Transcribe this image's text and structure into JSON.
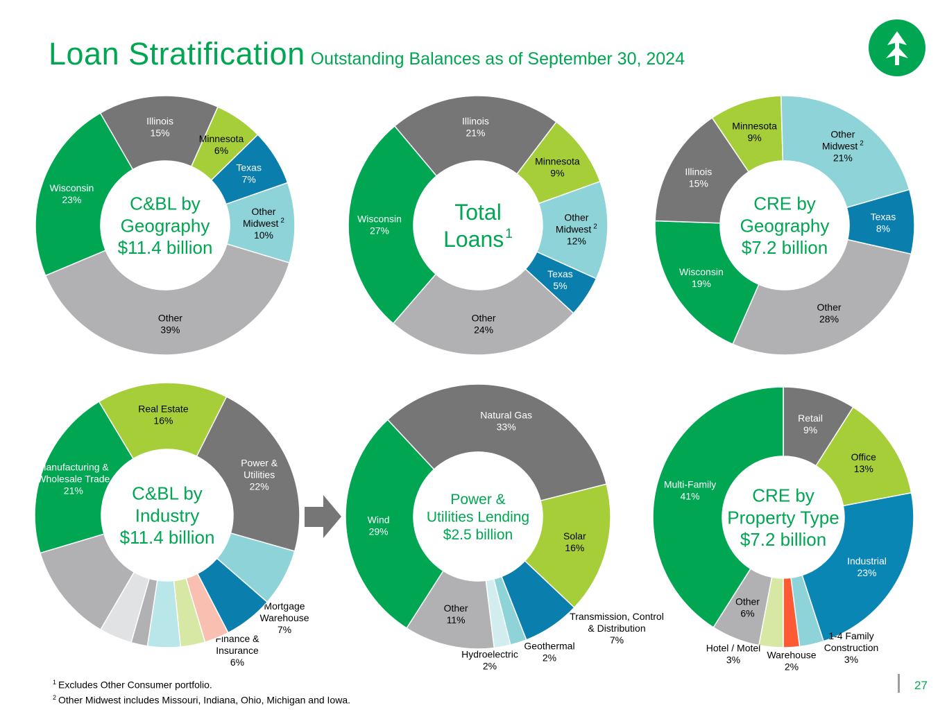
{
  "header": {
    "title": "Loan Stratification",
    "subtitle": "Outstanding Balances as of September 30, 2024"
  },
  "colors": {
    "green": "#00A651",
    "dark_gray": "#767676",
    "light_green": "#A6CE39",
    "blue": "#0A7FAE",
    "light_teal": "#8DD3D8",
    "light_gray": "#B1B1B3"
  },
  "logo": {
    "icon": "tree-logo-icon"
  },
  "chart_data": [
    {
      "type": "donut",
      "title": [
        "C&BL by",
        "Geography",
        "$11.4 billion"
      ],
      "slices": [
        {
          "label": [
            "Illinois"
          ],
          "value": 15,
          "color": "#767676",
          "text_color": "#ffffff"
        },
        {
          "label": [
            "Minnesota"
          ],
          "value": 6,
          "color": "#A6CE39",
          "text_color": "#000000"
        },
        {
          "label": [
            "Texas"
          ],
          "value": 7,
          "color": "#0A7FAE",
          "text_color": "#ffffff"
        },
        {
          "label": [
            "Other",
            "Midwest"
          ],
          "sup": "2",
          "value": 10,
          "color": "#8DD3D8",
          "text_color": "#000000"
        },
        {
          "label": [
            "Other"
          ],
          "value": 39,
          "color": "#B1B1B3",
          "text_color": "#000000"
        },
        {
          "label": [
            "Wisconsin"
          ],
          "value": 23,
          "color": "#00A651",
          "text_color": "#ffffff"
        }
      ]
    },
    {
      "type": "donut",
      "title": [
        "Total",
        "Loans"
      ],
      "title_sup": "1",
      "slices": [
        {
          "label": [
            "Illinois"
          ],
          "value": 21,
          "color": "#767676",
          "text_color": "#ffffff"
        },
        {
          "label": [
            "Minnesota"
          ],
          "value": 9,
          "color": "#A6CE39",
          "text_color": "#000000"
        },
        {
          "label": [
            "Other",
            "Midwest"
          ],
          "sup": "2",
          "value": 12,
          "color": "#8DD3D8",
          "text_color": "#000000"
        },
        {
          "label": [
            "Texas"
          ],
          "value": 5,
          "color": "#0A7FAE",
          "text_color": "#ffffff"
        },
        {
          "label": [
            "Other"
          ],
          "value": 24,
          "color": "#B1B1B3",
          "text_color": "#000000"
        },
        {
          "label": [
            "Wisconsin"
          ],
          "value": 27,
          "color": "#00A651",
          "text_color": "#ffffff"
        }
      ]
    },
    {
      "type": "donut",
      "title": [
        "CRE by",
        "Geography",
        "$7.2 billion"
      ],
      "slices": [
        {
          "label": [
            "Minnesota"
          ],
          "value": 9,
          "color": "#A6CE39",
          "text_color": "#000000"
        },
        {
          "label": [
            "Other",
            "Midwest"
          ],
          "sup": "2",
          "value": 21,
          "color": "#8DD3D8",
          "text_color": "#000000"
        },
        {
          "label": [
            "Texas"
          ],
          "value": 8,
          "color": "#0A7FAE",
          "text_color": "#ffffff"
        },
        {
          "label": [
            "Other"
          ],
          "value": 28,
          "color": "#B1B1B3",
          "text_color": "#000000"
        },
        {
          "label": [
            "Wisconsin"
          ],
          "value": 19,
          "color": "#00A651",
          "text_color": "#ffffff"
        },
        {
          "label": [
            "Illinois"
          ],
          "value": 15,
          "color": "#767676",
          "text_color": "#ffffff"
        }
      ]
    },
    {
      "type": "donut",
      "title": [
        "C&BL by",
        "Industry",
        "$11.4 billion"
      ],
      "slices": [
        {
          "label": [
            "Real Estate"
          ],
          "value": 16,
          "color": "#A6CE39",
          "text_color": "#000000"
        },
        {
          "label": [
            "Power &",
            "Utilities"
          ],
          "value": 22,
          "color": "#767676",
          "text_color": "#ffffff"
        },
        {
          "label": [
            "Mortgage",
            "Warehouse"
          ],
          "value": 7,
          "color": "#8DD3D8",
          "text_color": "#000000",
          "outside": true
        },
        {
          "label": [
            "Finance &",
            "Insurance"
          ],
          "value": 6,
          "color": "#0A7FAE",
          "text_color": "#000000",
          "outside": true
        },
        {
          "label": [],
          "value": 3,
          "color": "#F9BFB0"
        },
        {
          "label": [],
          "value": 3,
          "color": "#D6E8A4"
        },
        {
          "label": [],
          "value": 4,
          "color": "#B9E6E8"
        },
        {
          "label": [],
          "value": 2,
          "color": "#B1B1B3"
        },
        {
          "label": [],
          "value": 4,
          "color": "#E1E2E3"
        },
        {
          "label": [],
          "value": 12,
          "color": "#B1B1B3"
        },
        {
          "label": [
            "Manufacturing &",
            "Wholesale Trade"
          ],
          "value": 21,
          "color": "#00A651",
          "text_color": "#ffffff"
        }
      ]
    },
    {
      "type": "donut",
      "title": [
        "Power &",
        "Utilities Lending",
        "$2.5 billion"
      ],
      "slices": [
        {
          "label": [
            "Natural Gas"
          ],
          "value": 33,
          "color": "#767676",
          "text_color": "#ffffff"
        },
        {
          "label": [
            "Solar"
          ],
          "value": 16,
          "color": "#A6CE39",
          "text_color": "#000000"
        },
        {
          "label": [
            "Transmission, Control",
            "& Distribution"
          ],
          "value": 7,
          "color": "#0A7FAE",
          "text_color": "#000000",
          "outside": true
        },
        {
          "label": [
            "Geothermal"
          ],
          "value": 2,
          "color": "#8DD3D8",
          "text_color": "#000000",
          "outside": true
        },
        {
          "label": [
            "Hydroelectric"
          ],
          "value": 2,
          "color": "#D2EDEE",
          "text_color": "#000000",
          "outside": true
        },
        {
          "label": [
            "Other"
          ],
          "value": 11,
          "color": "#B1B1B3",
          "text_color": "#000000"
        },
        {
          "label": [
            "Wind"
          ],
          "value": 29,
          "color": "#00A651",
          "text_color": "#ffffff"
        }
      ]
    },
    {
      "type": "donut",
      "title": [
        "CRE by",
        "Property Type",
        "$7.2 billion"
      ],
      "slices": [
        {
          "label": [
            "Retail"
          ],
          "value": 9,
          "color": "#767676",
          "text_color": "#ffffff"
        },
        {
          "label": [
            "Office"
          ],
          "value": 13,
          "color": "#A6CE39",
          "text_color": "#000000"
        },
        {
          "label": [
            "Industrial"
          ],
          "value": 23,
          "color": "#0A86B4",
          "text_color": "#ffffff"
        },
        {
          "label": [
            "1-4 Family",
            "Construction"
          ],
          "value": 3,
          "color": "#8DD3D8",
          "text_color": "#000000",
          "outside": true
        },
        {
          "label": [
            "Warehouse"
          ],
          "value": 2,
          "color": "#FF5A36",
          "text_color": "#000000",
          "outside": true
        },
        {
          "label": [
            "Hotel / Motel"
          ],
          "value": 3,
          "color": "#D6E8A4",
          "text_color": "#000000",
          "outside": true
        },
        {
          "label": [
            "Other"
          ],
          "value": 6,
          "color": "#B1B1B3",
          "text_color": "#000000"
        },
        {
          "label": [
            "Multi-Family"
          ],
          "value": 41,
          "color": "#00A651",
          "text_color": "#ffffff"
        }
      ]
    }
  ],
  "footnotes": [
    {
      "num": "1",
      "text": "Excludes Other Consumer portfolio."
    },
    {
      "num": "2",
      "text": "Other Midwest includes Missouri, Indiana, Ohio, Michigan and Iowa."
    }
  ],
  "page_number": "27"
}
